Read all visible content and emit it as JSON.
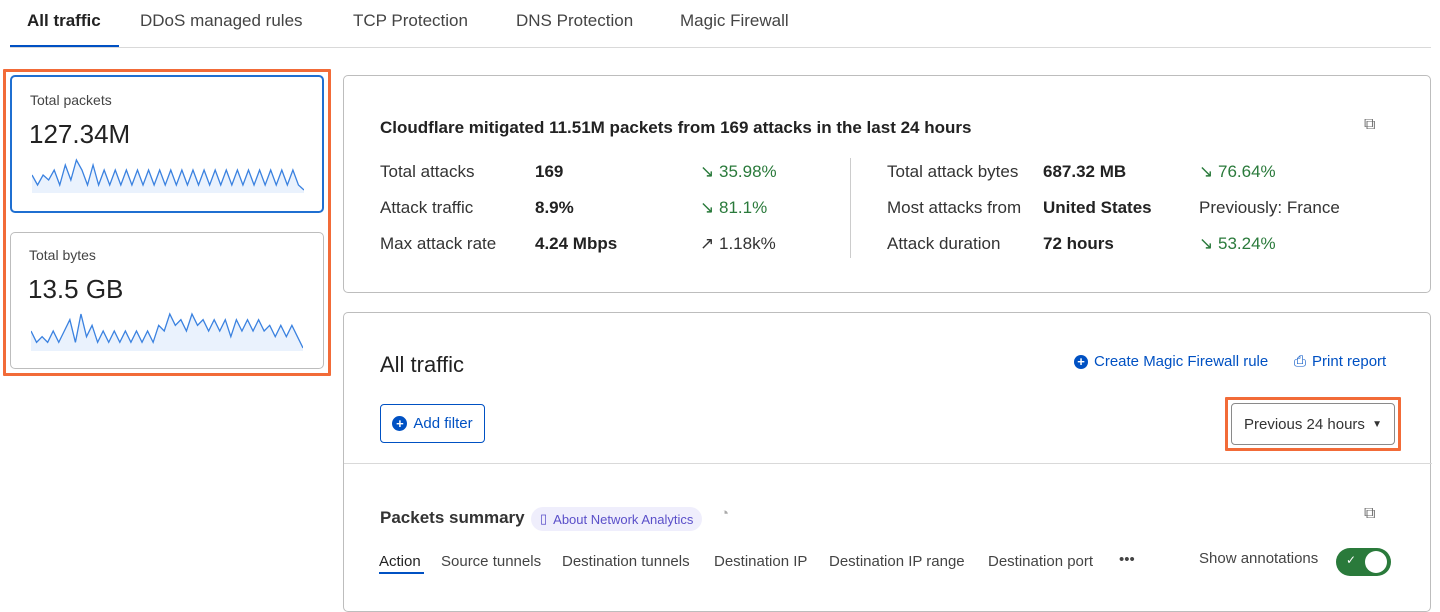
{
  "tabs": [
    {
      "label": "All traffic",
      "active": true
    },
    {
      "label": "DDoS managed rules"
    },
    {
      "label": "TCP Protection"
    },
    {
      "label": "DNS Protection"
    },
    {
      "label": "Magic Firewall"
    }
  ],
  "metrics": [
    {
      "label": "Total packets",
      "value": "127.34M",
      "spark": [
        3,
        1,
        3,
        2,
        4,
        1,
        5,
        2,
        6,
        4,
        1,
        5,
        1,
        4,
        1,
        4,
        1,
        4,
        1,
        4,
        1,
        4,
        1,
        4,
        1,
        4,
        1,
        4,
        1,
        4,
        1,
        4,
        1,
        4,
        1,
        4,
        1,
        4,
        1,
        4,
        1,
        4,
        1,
        4,
        1,
        4,
        1,
        4,
        1,
        0
      ]
    },
    {
      "label": "Total bytes",
      "value": "13.5 GB",
      "spark": [
        3,
        1,
        2,
        1,
        3,
        1,
        3,
        5,
        1,
        6,
        2,
        4,
        1,
        3,
        1,
        3,
        1,
        3,
        1,
        3,
        1,
        3,
        1,
        4,
        3,
        6,
        4,
        5,
        3,
        6,
        4,
        5,
        3,
        5,
        3,
        5,
        2,
        5,
        3,
        5,
        3,
        5,
        3,
        4,
        2,
        4,
        2,
        4,
        2,
        0
      ]
    }
  ],
  "summary": {
    "headline": "Cloudflare mitigated 11.51M packets from 169 attacks in the last 24 hours",
    "left": [
      {
        "label": "Total attacks",
        "value": "169",
        "change": "35.98%",
        "direction": "down"
      },
      {
        "label": "Attack traffic",
        "value": "8.9%",
        "change": "81.1%",
        "direction": "down"
      },
      {
        "label": "Max attack rate",
        "value": "4.24 Mbps",
        "change": "1.18k%",
        "direction": "up"
      }
    ],
    "right": [
      {
        "label": "Total attack bytes",
        "value": "687.32 MB",
        "change": "76.64%",
        "direction": "down"
      },
      {
        "label": "Most attacks from",
        "value": "United States",
        "change": "Previously: France",
        "direction": "none"
      },
      {
        "label": "Attack duration",
        "value": "72 hours",
        "change": "53.24%",
        "direction": "down"
      }
    ]
  },
  "traffic": {
    "title": "All traffic",
    "create_rule": "Create Magic Firewall rule",
    "print": "Print report",
    "add_filter": "Add filter",
    "time_range": "Previous 24 hours",
    "packets_title": "Packets summary",
    "about": "About Network Analytics",
    "subtabs": [
      "Action",
      "Source tunnels",
      "Destination tunnels",
      "Destination IP",
      "Destination IP range",
      "Destination port"
    ],
    "more": "•••",
    "annotations_label": "Show annotations",
    "annotations_on": true
  },
  "colors": {
    "accent": "#0051c3",
    "highlight": "#f26b38",
    "toggle": "#2a7a3b",
    "positive": "#2a7a3b"
  }
}
